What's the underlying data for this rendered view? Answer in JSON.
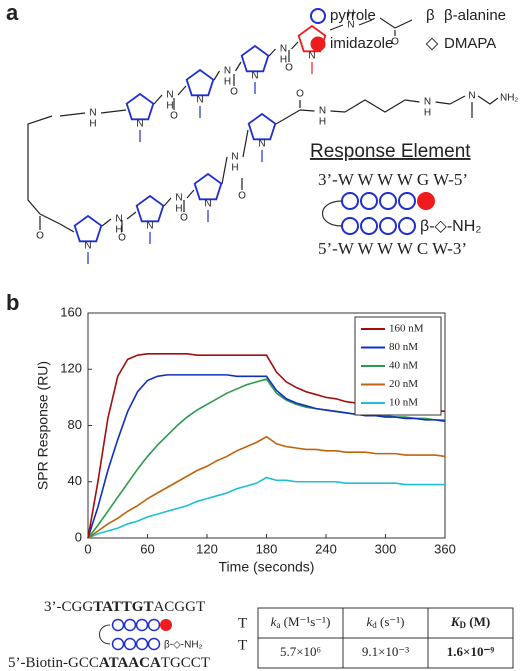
{
  "panel_a": {
    "label": "a",
    "legend": [
      {
        "shape": "pyrrole",
        "label": "pyrrole"
      },
      {
        "symbol": "β",
        "label": "β-alanine"
      },
      {
        "shape": "imidazole",
        "label": "imidazole"
      },
      {
        "shape": "DMAPA",
        "label": "DMAPA"
      }
    ],
    "atoms": {
      "n": "N",
      "h": "H",
      "o": "O",
      "nh2": "NH₂"
    },
    "response_element": {
      "title": "Response Element",
      "top": "3’-W W W W G W-5’",
      "tail": "β-◇-NH₂",
      "bottom": "5’-W W W W C W-3’"
    }
  },
  "chart_data": {
    "type": "line",
    "label": "b",
    "xlabel": "Time (seconds)",
    "ylabel": "SPR Response (RU)",
    "xlim": [
      0,
      360
    ],
    "xticks": [
      0,
      60,
      120,
      180,
      240,
      300,
      360
    ],
    "ylim": [
      0,
      160
    ],
    "yticks": [
      0,
      40,
      80,
      120,
      160
    ],
    "legend": "upper right",
    "x": [
      0,
      10,
      20,
      30,
      40,
      50,
      60,
      70,
      80,
      90,
      100,
      110,
      120,
      130,
      140,
      150,
      160,
      170,
      180,
      190,
      200,
      210,
      220,
      230,
      240,
      250,
      260,
      270,
      280,
      290,
      300,
      310,
      320,
      330,
      340,
      350,
      360
    ],
    "series": [
      {
        "name": "160 nM",
        "color": "#a30d0d",
        "values": [
          0,
          40,
          85,
          115,
          127,
          130,
          131,
          131,
          131,
          131,
          131,
          130,
          130,
          130,
          130,
          130,
          130,
          130,
          130,
          118,
          111,
          107,
          104,
          102,
          100,
          99,
          97,
          96,
          95,
          94,
          94,
          93,
          92,
          92,
          91,
          91,
          90
        ]
      },
      {
        "name": "80 nM",
        "color": "#1030c0",
        "values": [
          0,
          22,
          48,
          70,
          90,
          104,
          112,
          115,
          116,
          116,
          116,
          116,
          116,
          116,
          116,
          115,
          115,
          115,
          115,
          105,
          99,
          96,
          94,
          92,
          91,
          90,
          89,
          88,
          87,
          87,
          86,
          86,
          85,
          85,
          84,
          84,
          83
        ]
      },
      {
        "name": "40 nM",
        "color": "#2e9a4c",
        "values": [
          0,
          9,
          19,
          29,
          39,
          49,
          58,
          66,
          73,
          80,
          86,
          91,
          95,
          99,
          103,
          106,
          109,
          111,
          113,
          103,
          98,
          95,
          93,
          92,
          91,
          90,
          89,
          88,
          88,
          87,
          87,
          86,
          86,
          85,
          85,
          84,
          84
        ]
      },
      {
        "name": "20 nM",
        "color": "#c0630f",
        "values": [
          0,
          5,
          10,
          14,
          19,
          23,
          28,
          32,
          36,
          40,
          44,
          48,
          51,
          55,
          58,
          62,
          65,
          68,
          72,
          67,
          65,
          64,
          63,
          63,
          62,
          62,
          61,
          61,
          61,
          60,
          60,
          60,
          59,
          59,
          59,
          59,
          58
        ]
      },
      {
        "name": "10 nM",
        "color": "#1dbfd0",
        "values": [
          0,
          3,
          5,
          7,
          10,
          12,
          15,
          17,
          19,
          21,
          23,
          26,
          28,
          30,
          32,
          35,
          37,
          39,
          43,
          41,
          41,
          40,
          40,
          40,
          40,
          40,
          39,
          39,
          39,
          39,
          39,
          39,
          38,
          38,
          38,
          38,
          38
        ]
      }
    ]
  },
  "hairpin": {
    "top": [
      "3’-CGG",
      "TATTGT",
      "ACGGT"
    ],
    "bottom": [
      "5’-Biotin-GCC",
      "ATAACA",
      "TGCCT"
    ],
    "loop": [
      "T",
      "T"
    ],
    "tail": "β-◇-NH₂"
  },
  "table": {
    "headers": [
      {
        "symbol": "k",
        "sub": "a",
        "unit": " (M⁻¹s⁻¹)"
      },
      {
        "symbol": "k",
        "sub": "d",
        "unit": " (s⁻¹)"
      },
      {
        "symbol": "K",
        "sub": "D",
        "unit": " (M)"
      }
    ],
    "rows": [
      [
        "5.7×10⁶",
        "9.1×10⁻³",
        "1.6×10⁻⁹"
      ]
    ]
  }
}
